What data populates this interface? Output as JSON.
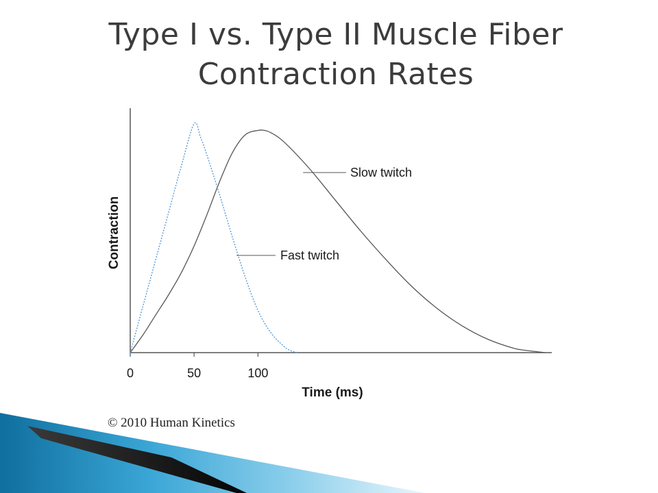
{
  "slide": {
    "title": "Type I vs. Type II Muscle Fiber Contraction Rates",
    "copyright": "© 2010 Human Kinetics"
  },
  "colors": {
    "title_text": "#3c3c3c",
    "slow_series": "#555555",
    "fast_series": "#5b9bd5",
    "axis": "#555555",
    "decor_blue": "#1b8cc0",
    "decor_dark": "#0d0d0d"
  },
  "chart_data": {
    "type": "line",
    "title": "",
    "xlabel": "Time (ms)",
    "ylabel": "Contraction",
    "xlim": [
      0,
      330
    ],
    "ylim": [
      0,
      1.1
    ],
    "x_ticks": [
      0,
      50,
      100
    ],
    "x_tick_labels": [
      "0",
      "50",
      "100"
    ],
    "grid": false,
    "legend": "inline labels",
    "series": [
      {
        "name": "Slow twitch",
        "style": "solid",
        "x": [
          0,
          10,
          20,
          30,
          40,
          50,
          60,
          70,
          80,
          90,
          100,
          105,
          110,
          120,
          140,
          160,
          180,
          200,
          220,
          240,
          260,
          280,
          300,
          310,
          325
        ],
        "y": [
          0,
          0.08,
          0.17,
          0.26,
          0.36,
          0.48,
          0.62,
          0.77,
          0.9,
          0.98,
          1.0,
          1.0,
          0.99,
          0.95,
          0.83,
          0.69,
          0.55,
          0.42,
          0.3,
          0.2,
          0.12,
          0.06,
          0.02,
          0.01,
          0
        ]
      },
      {
        "name": "Fast twitch",
        "style": "dotted",
        "x": [
          0,
          10,
          20,
          30,
          40,
          50,
          55,
          60,
          70,
          80,
          90,
          100,
          110,
          120,
          125,
          131
        ],
        "y": [
          0,
          0.21,
          0.42,
          0.63,
          0.84,
          1.03,
          0.97,
          0.89,
          0.71,
          0.52,
          0.34,
          0.19,
          0.09,
          0.03,
          0.01,
          0
        ]
      }
    ]
  }
}
